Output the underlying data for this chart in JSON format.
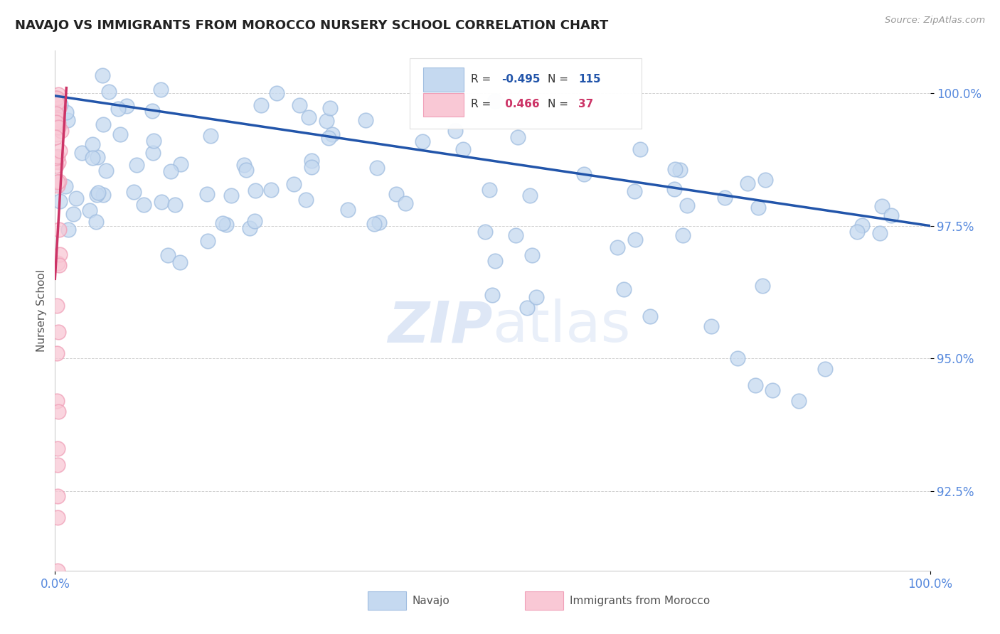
{
  "title": "NAVAJO VS IMMIGRANTS FROM MOROCCO NURSERY SCHOOL CORRELATION CHART",
  "source": "Source: ZipAtlas.com",
  "ylabel": "Nursery School",
  "legend_label_blue": "Navajo",
  "legend_label_pink": "Immigrants from Morocco",
  "r_blue": -0.495,
  "n_blue": 115,
  "r_pink": 0.466,
  "n_pink": 37,
  "x_min": 0.0,
  "x_max": 1.0,
  "y_min": 0.91,
  "y_max": 1.008,
  "y_ticks": [
    0.925,
    0.95,
    0.975,
    1.0
  ],
  "y_tick_labels": [
    "92.5%",
    "95.0%",
    "97.5%",
    "100.0%"
  ],
  "x_ticks": [
    0.0,
    1.0
  ],
  "x_tick_labels": [
    "0.0%",
    "100.0%"
  ],
  "blue_face_color": "#c5d9f0",
  "blue_edge_color": "#a0bde0",
  "pink_face_color": "#f9c8d5",
  "pink_edge_color": "#f0a0b8",
  "blue_line_color": "#2255aa",
  "pink_line_color": "#cc3366",
  "tick_color": "#5588dd",
  "grid_color": "#cccccc",
  "title_color": "#222222",
  "watermark_color": "#c8d8f0",
  "blue_line_x": [
    0.0,
    1.0
  ],
  "blue_line_y": [
    0.9995,
    0.975
  ],
  "pink_line_x": [
    0.0,
    0.013
  ],
  "pink_line_y": [
    0.965,
    1.001
  ]
}
